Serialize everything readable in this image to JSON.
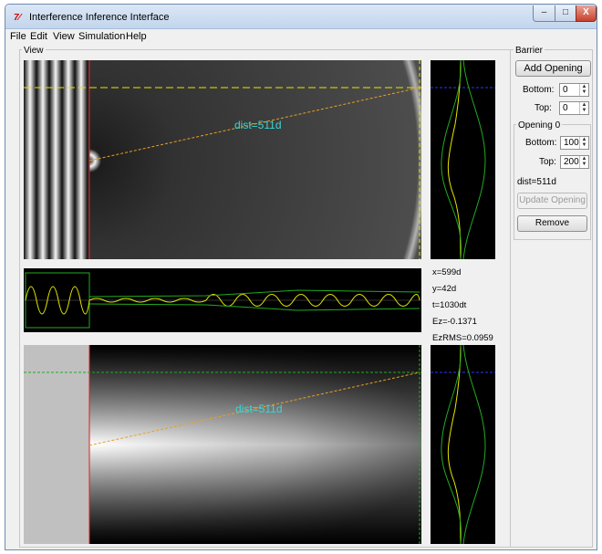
{
  "window": {
    "title": "Interference Inference Interface",
    "minimize": "–",
    "maximize": "□",
    "close": "X",
    "icon_text": "7⁄"
  },
  "menu": [
    "File",
    "Edit",
    "View",
    "Simulation",
    "Help"
  ],
  "view_label": "View",
  "barrier": {
    "label": "Barrier",
    "add_opening": "Add Opening",
    "bottom_label": "Bottom:",
    "bottom_value": "0",
    "top_label": "Top:",
    "top_value": "0"
  },
  "opening": {
    "label": "Opening 0",
    "bottom_label": "Bottom:",
    "bottom_value": "100",
    "top_label": "Top:",
    "top_value": "200",
    "dist": "dist=511d",
    "update_button": "Update Opening",
    "remove_button": "Remove"
  },
  "stats": {
    "x": "x=599d",
    "y": "y=42d",
    "t": "t=1030dt",
    "ez": "Ez=-0.1371",
    "ezrms": "EzRMS=0.0959"
  },
  "overlays": {
    "top_dist": "dist=511d",
    "bottom_dist": "dist=511d"
  },
  "colors": {
    "cyan": "#3ad6d6",
    "yellow": "#e6e600",
    "green": "#22aa22",
    "blue": "#3030ff",
    "red": "#e02020",
    "orange": "#e8a020"
  }
}
